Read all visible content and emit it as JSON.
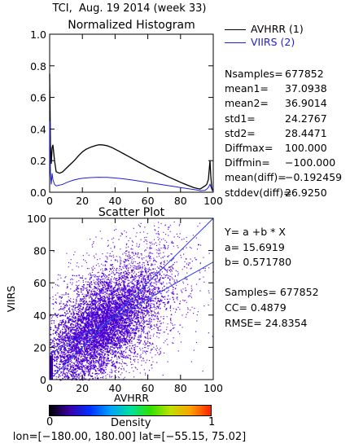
{
  "figure_title": "TCI,  Aug. 19 2014 (week 33)",
  "legend": {
    "items": [
      {
        "label": "AVHRR (1)",
        "color": "#000000"
      },
      {
        "label": "VIIRS (2)",
        "color": "#1f1fd6"
      }
    ]
  },
  "stats": [
    {
      "key": "Nsamples=",
      "value": "677852"
    },
    {
      "key": "mean1=",
      "value": "37.0938"
    },
    {
      "key": "mean2=",
      "value": "36.9014"
    },
    {
      "key": "std1=",
      "value": "24.2767"
    },
    {
      "key": "std2=",
      "value": "28.4471"
    },
    {
      "key": "Diffmax=",
      "value": "100.000"
    },
    {
      "key": "Diffmin=",
      "value": "−100.000"
    },
    {
      "key": "mean(diff)=",
      "value": "−0.192459"
    },
    {
      "key": "stddev(diff)=",
      "value": "26.9250"
    }
  ],
  "fit": {
    "equation": "Y=  a  +b  * X",
    "a": "a=  15.6919",
    "b": "b=  0.571780",
    "samples": "Samples= 677852",
    "cc": "CC=   0.4879",
    "rmse": "RMSE=  24.8354"
  },
  "colorbar": {
    "label": "Density",
    "min_label": "0",
    "max_label": "1",
    "colors": [
      "#000000",
      "#3a00a8",
      "#0030ff",
      "#00a0ff",
      "#00e0a0",
      "#30e000",
      "#c0e000",
      "#ffa000",
      "#ff2000"
    ]
  },
  "footer": "lon=[−180.00, 180.00] lat=[−55.15, 75.02]",
  "chart_data": [
    {
      "type": "line",
      "title": "Normalized Histogram",
      "xlabel": "",
      "ylabel": "",
      "xlim": [
        0,
        100
      ],
      "ylim": [
        0,
        1.0
      ],
      "xticks": [
        "0",
        "20",
        "40",
        "60",
        "80",
        "100"
      ],
      "yticks": [
        "0.0",
        "0.2",
        "0.4",
        "0.6",
        "0.8",
        "1.0"
      ],
      "grid": false,
      "series": [
        {
          "name": "AVHRR (1)",
          "color": "#000000",
          "x": [
            0,
            0.5,
            1,
            1.5,
            2,
            3,
            4,
            6,
            8,
            10,
            12,
            15,
            18,
            20,
            22,
            25,
            28,
            30,
            32,
            35,
            38,
            40,
            42,
            45,
            48,
            50,
            52,
            55,
            58,
            60,
            62,
            65,
            68,
            70,
            72,
            75,
            78,
            80,
            82,
            85,
            88,
            90,
            92,
            95,
            96,
            97,
            98,
            98.5,
            99,
            99.5,
            100
          ],
          "y": [
            0.75,
            0.3,
            0.18,
            0.28,
            0.3,
            0.2,
            0.13,
            0.12,
            0.13,
            0.15,
            0.17,
            0.2,
            0.235,
            0.255,
            0.27,
            0.285,
            0.295,
            0.3,
            0.3,
            0.295,
            0.283,
            0.272,
            0.262,
            0.245,
            0.228,
            0.217,
            0.205,
            0.188,
            0.172,
            0.16,
            0.15,
            0.135,
            0.121,
            0.111,
            0.1,
            0.086,
            0.072,
            0.063,
            0.054,
            0.042,
            0.03,
            0.025,
            0.02,
            0.04,
            0.05,
            0.08,
            0.2,
            0.1,
            0.04,
            0.01,
            0.01
          ]
        },
        {
          "name": "VIIRS (2)",
          "color": "#1f1fd6",
          "x": [
            0,
            0.5,
            1,
            1.5,
            2,
            3,
            4,
            6,
            8,
            10,
            12,
            15,
            18,
            20,
            25,
            30,
            35,
            40,
            45,
            50,
            55,
            60,
            65,
            70,
            75,
            80,
            85,
            90,
            92,
            95,
            96,
            97,
            98,
            99,
            99.5,
            100
          ],
          "y": [
            0.45,
            0.12,
            0.05,
            0.12,
            0.08,
            0.05,
            0.04,
            0.045,
            0.05,
            0.06,
            0.068,
            0.078,
            0.085,
            0.088,
            0.093,
            0.095,
            0.094,
            0.09,
            0.085,
            0.078,
            0.07,
            0.062,
            0.054,
            0.046,
            0.038,
            0.03,
            0.022,
            0.014,
            0.01,
            0.012,
            0.02,
            0.03,
            0.05,
            0.02,
            0.01,
            0.01
          ]
        }
      ]
    },
    {
      "type": "scatter",
      "title": "Scatter Plot",
      "xlabel": "AVHRR",
      "ylabel": "VIIRS",
      "xlim": [
        0,
        100
      ],
      "ylim": [
        0,
        100
      ],
      "xticks": [
        "0",
        "20",
        "40",
        "60",
        "80",
        "100"
      ],
      "yticks": [
        "0",
        "20",
        "40",
        "60",
        "80",
        "100"
      ],
      "grid": false,
      "n_samples": 677852,
      "fit_line": {
        "intercept": 15.6919,
        "slope": 0.57178,
        "color": "#2a3de0"
      },
      "one_to_one_line": {
        "from": [
          0,
          0
        ],
        "to": [
          100,
          100
        ],
        "color": "#2a3de0"
      }
    }
  ]
}
